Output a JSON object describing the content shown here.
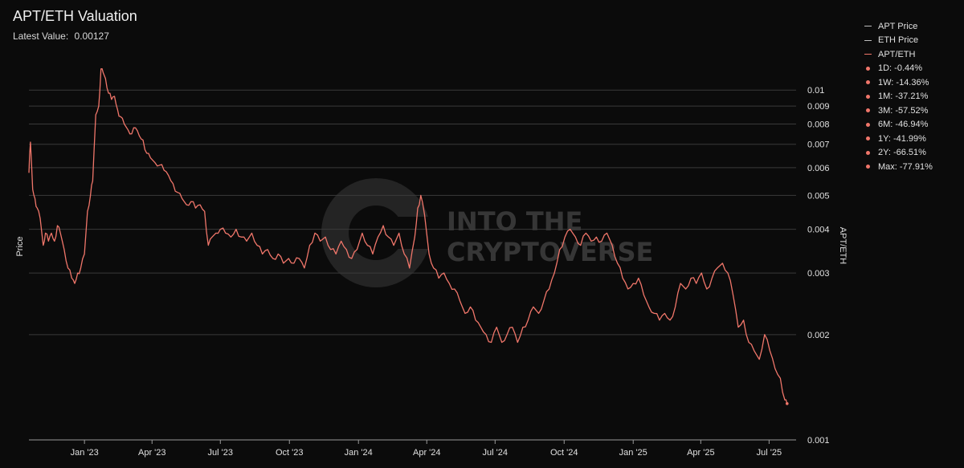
{
  "header": {
    "title": "APT/ETH Valuation",
    "latest_label": "Latest Value:",
    "latest_value": "0.00127"
  },
  "legend": {
    "lines": [
      {
        "label": "APT Price",
        "color": "#bdbdbd"
      },
      {
        "label": "ETH Price",
        "color": "#bdbdbd"
      },
      {
        "label": "APT/ETH",
        "color": "#f0766a"
      }
    ],
    "stats": [
      {
        "label": "1D: -0.44%"
      },
      {
        "label": "1W: -14.36%"
      },
      {
        "label": "1M: -37.21%"
      },
      {
        "label": "3M: -57.52%"
      },
      {
        "label": "6M: -46.94%"
      },
      {
        "label": "1Y: -41.99%"
      },
      {
        "label": "2Y: -66.51%"
      },
      {
        "label": "Max: -77.91%"
      }
    ],
    "dot_color": "#f0766a"
  },
  "watermark": {
    "line1": "INTO THE",
    "line2": "CRYPTOVERSE"
  },
  "chart_data": {
    "type": "line",
    "ylabel_left": "Price",
    "ylabel_right": "APT/ETH",
    "y_scale": "log",
    "ylim": [
      0.001,
      0.0125
    ],
    "y_ticks": [
      {
        "value": 0.001,
        "label": "0.001"
      },
      {
        "value": 0.002,
        "label": "0.002"
      },
      {
        "value": 0.003,
        "label": "0.003"
      },
      {
        "value": 0.004,
        "label": "0.004"
      },
      {
        "value": 0.005,
        "label": "0.005"
      },
      {
        "value": 0.006,
        "label": "0.006"
      },
      {
        "value": 0.007,
        "label": "0.007"
      },
      {
        "value": 0.008,
        "label": "0.008"
      },
      {
        "value": 0.009,
        "label": "0.009"
      },
      {
        "value": 0.01,
        "label": "0.01"
      }
    ],
    "xlim": [
      "2022-10-19",
      "2025-08-06"
    ],
    "x_ticks": [
      {
        "date": "2023-01-01",
        "label": "Jan '23"
      },
      {
        "date": "2023-04-01",
        "label": "Apr '23"
      },
      {
        "date": "2023-07-01",
        "label": "Jul '23"
      },
      {
        "date": "2023-10-01",
        "label": "Oct '23"
      },
      {
        "date": "2024-01-01",
        "label": "Jan '24"
      },
      {
        "date": "2024-04-01",
        "label": "Apr '24"
      },
      {
        "date": "2024-07-01",
        "label": "Jul '24"
      },
      {
        "date": "2024-10-01",
        "label": "Oct '24"
      },
      {
        "date": "2025-01-01",
        "label": "Jan '25"
      },
      {
        "date": "2025-04-01",
        "label": "Apr '25"
      },
      {
        "date": "2025-07-01",
        "label": "Jul '25"
      }
    ],
    "grid": true,
    "legend_position": "right",
    "series": [
      {
        "name": "APT/ETH",
        "color": "#f0766a",
        "points": [
          [
            "2022-10-19",
            0.0058
          ],
          [
            "2022-10-21",
            0.0071
          ],
          [
            "2022-10-24",
            0.0052
          ],
          [
            "2022-10-27",
            0.0049
          ],
          [
            "2022-10-30",
            0.0046
          ],
          [
            "2022-11-03",
            0.0043
          ],
          [
            "2022-11-07",
            0.0036
          ],
          [
            "2022-11-10",
            0.0039
          ],
          [
            "2022-11-14",
            0.0037
          ],
          [
            "2022-11-18",
            0.0039
          ],
          [
            "2022-11-22",
            0.0037
          ],
          [
            "2022-11-26",
            0.0041
          ],
          [
            "2022-11-30",
            0.0039
          ],
          [
            "2022-12-05",
            0.0035
          ],
          [
            "2022-12-10",
            0.0031
          ],
          [
            "2022-12-15",
            0.0029
          ],
          [
            "2022-12-19",
            0.0028
          ],
          [
            "2022-12-23",
            0.003
          ],
          [
            "2022-12-27",
            0.0031
          ],
          [
            "2023-01-01",
            0.0034
          ],
          [
            "2023-01-05",
            0.0045
          ],
          [
            "2023-01-09",
            0.005
          ],
          [
            "2023-01-12",
            0.0055
          ],
          [
            "2023-01-16",
            0.0085
          ],
          [
            "2023-01-20",
            0.009
          ],
          [
            "2023-01-23",
            0.0115
          ],
          [
            "2023-01-26",
            0.0112
          ],
          [
            "2023-01-29",
            0.0108
          ],
          [
            "2023-02-02",
            0.0098
          ],
          [
            "2023-02-06",
            0.0094
          ],
          [
            "2023-02-10",
            0.0096
          ],
          [
            "2023-02-14",
            0.0088
          ],
          [
            "2023-02-18",
            0.0084
          ],
          [
            "2023-02-23",
            0.008
          ],
          [
            "2023-02-28",
            0.0077
          ],
          [
            "2023-03-05",
            0.0075
          ],
          [
            "2023-03-10",
            0.0078
          ],
          [
            "2023-03-15",
            0.0074
          ],
          [
            "2023-03-20",
            0.0072
          ],
          [
            "2023-03-25",
            0.0066
          ],
          [
            "2023-03-30",
            0.0064
          ],
          [
            "2023-04-05",
            0.0062
          ],
          [
            "2023-04-11",
            0.0061
          ],
          [
            "2023-04-17",
            0.0059
          ],
          [
            "2023-04-23",
            0.0057
          ],
          [
            "2023-04-29",
            0.0054
          ],
          [
            "2023-05-05",
            0.0051
          ],
          [
            "2023-05-11",
            0.0049
          ],
          [
            "2023-05-17",
            0.0047
          ],
          [
            "2023-05-23",
            0.0048
          ],
          [
            "2023-05-29",
            0.0046
          ],
          [
            "2023-06-04",
            0.0047
          ],
          [
            "2023-06-10",
            0.0045
          ],
          [
            "2023-06-15",
            0.0036
          ],
          [
            "2023-06-20",
            0.0038
          ],
          [
            "2023-06-25",
            0.0039
          ],
          [
            "2023-07-01",
            0.004
          ],
          [
            "2023-07-08",
            0.0039
          ],
          [
            "2023-07-15",
            0.0038
          ],
          [
            "2023-07-22",
            0.004
          ],
          [
            "2023-07-29",
            0.0038
          ],
          [
            "2023-08-05",
            0.0037
          ],
          [
            "2023-08-12",
            0.0039
          ],
          [
            "2023-08-19",
            0.0036
          ],
          [
            "2023-08-26",
            0.0034
          ],
          [
            "2023-09-02",
            0.0035
          ],
          [
            "2023-09-09",
            0.0033
          ],
          [
            "2023-09-16",
            0.0034
          ],
          [
            "2023-09-23",
            0.0032
          ],
          [
            "2023-09-30",
            0.0033
          ],
          [
            "2023-10-07",
            0.0032
          ],
          [
            "2023-10-14",
            0.0033
          ],
          [
            "2023-10-21",
            0.0031
          ],
          [
            "2023-10-28",
            0.0036
          ],
          [
            "2023-11-04",
            0.0039
          ],
          [
            "2023-11-11",
            0.0037
          ],
          [
            "2023-11-18",
            0.0038
          ],
          [
            "2023-11-25",
            0.0035
          ],
          [
            "2023-12-02",
            0.0034
          ],
          [
            "2023-12-09",
            0.0037
          ],
          [
            "2023-12-16",
            0.0035
          ],
          [
            "2023-12-23",
            0.0033
          ],
          [
            "2023-12-30",
            0.0035
          ],
          [
            "2024-01-06",
            0.0039
          ],
          [
            "2024-01-13",
            0.0036
          ],
          [
            "2024-01-20",
            0.0034
          ],
          [
            "2024-01-27",
            0.0038
          ],
          [
            "2024-02-03",
            0.0041
          ],
          [
            "2024-02-10",
            0.0038
          ],
          [
            "2024-02-17",
            0.0036
          ],
          [
            "2024-02-24",
            0.0039
          ],
          [
            "2024-03-02",
            0.0034
          ],
          [
            "2024-03-09",
            0.0031
          ],
          [
            "2024-03-16",
            0.0038
          ],
          [
            "2024-03-20",
            0.0046
          ],
          [
            "2024-03-24",
            0.005
          ],
          [
            "2024-03-29",
            0.0044
          ],
          [
            "2024-04-04",
            0.0034
          ],
          [
            "2024-04-10",
            0.0031
          ],
          [
            "2024-04-17",
            0.0029
          ],
          [
            "2024-04-24",
            0.003
          ],
          [
            "2024-05-01",
            0.0028
          ],
          [
            "2024-05-08",
            0.0027
          ],
          [
            "2024-05-15",
            0.0025
          ],
          [
            "2024-05-22",
            0.0023
          ],
          [
            "2024-05-29",
            0.0024
          ],
          [
            "2024-06-05",
            0.0022
          ],
          [
            "2024-06-12",
            0.0021
          ],
          [
            "2024-06-19",
            0.002
          ],
          [
            "2024-06-26",
            0.0019
          ],
          [
            "2024-07-03",
            0.0021
          ],
          [
            "2024-07-10",
            0.0019
          ],
          [
            "2024-07-17",
            0.002
          ],
          [
            "2024-07-24",
            0.0021
          ],
          [
            "2024-07-31",
            0.0019
          ],
          [
            "2024-08-07",
            0.0021
          ],
          [
            "2024-08-14",
            0.0022
          ],
          [
            "2024-08-21",
            0.0024
          ],
          [
            "2024-08-28",
            0.0023
          ],
          [
            "2024-09-04",
            0.0025
          ],
          [
            "2024-09-11",
            0.0027
          ],
          [
            "2024-09-18",
            0.003
          ],
          [
            "2024-09-25",
            0.0035
          ],
          [
            "2024-10-02",
            0.0038
          ],
          [
            "2024-10-09",
            0.004
          ],
          [
            "2024-10-16",
            0.0038
          ],
          [
            "2024-10-23",
            0.0036
          ],
          [
            "2024-10-30",
            0.0039
          ],
          [
            "2024-11-06",
            0.0037
          ],
          [
            "2024-11-13",
            0.0038
          ],
          [
            "2024-11-20",
            0.0037
          ],
          [
            "2024-11-27",
            0.0039
          ],
          [
            "2024-12-04",
            0.0036
          ],
          [
            "2024-12-11",
            0.0032
          ],
          [
            "2024-12-18",
            0.0029
          ],
          [
            "2024-12-25",
            0.0027
          ],
          [
            "2025-01-01",
            0.0028
          ],
          [
            "2025-01-08",
            0.0029
          ],
          [
            "2025-01-15",
            0.0026
          ],
          [
            "2025-01-22",
            0.0024
          ],
          [
            "2025-01-29",
            0.0023
          ],
          [
            "2025-02-05",
            0.0022
          ],
          [
            "2025-02-12",
            0.0023
          ],
          [
            "2025-02-19",
            0.0022
          ],
          [
            "2025-02-26",
            0.0024
          ],
          [
            "2025-03-05",
            0.0028
          ],
          [
            "2025-03-12",
            0.0027
          ],
          [
            "2025-03-19",
            0.0029
          ],
          [
            "2025-03-26",
            0.0028
          ],
          [
            "2025-04-02",
            0.003
          ],
          [
            "2025-04-09",
            0.0027
          ],
          [
            "2025-04-16",
            0.0029
          ],
          [
            "2025-04-23",
            0.0031
          ],
          [
            "2025-04-30",
            0.0032
          ],
          [
            "2025-05-07",
            0.003
          ],
          [
            "2025-05-14",
            0.0026
          ],
          [
            "2025-05-21",
            0.0021
          ],
          [
            "2025-05-28",
            0.0022
          ],
          [
            "2025-06-04",
            0.0019
          ],
          [
            "2025-06-11",
            0.0018
          ],
          [
            "2025-06-18",
            0.0017
          ],
          [
            "2025-06-25",
            0.002
          ],
          [
            "2025-07-02",
            0.0018
          ],
          [
            "2025-07-09",
            0.0016
          ],
          [
            "2025-07-16",
            0.0015
          ],
          [
            "2025-07-22",
            0.0013
          ],
          [
            "2025-07-25",
            0.00127
          ]
        ]
      }
    ]
  }
}
